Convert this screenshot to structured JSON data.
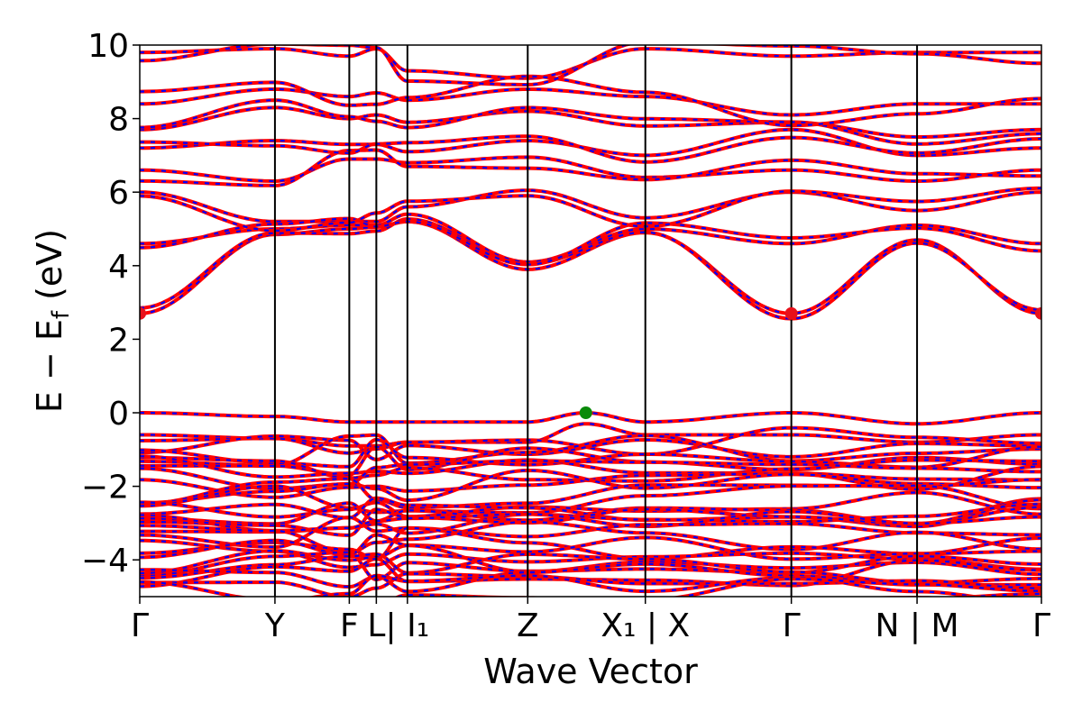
{
  "chart_data": {
    "type": "line",
    "title": "",
    "xlabel": "Wave Vector",
    "ylabel": "E − E",
    "ylabel_sub": "f",
    "ylabel_unit": " (eV)",
    "ylim": [
      -5,
      10
    ],
    "yticks": [
      -4,
      -2,
      0,
      2,
      4,
      6,
      8,
      10
    ],
    "ytick_labels": [
      "−4",
      "−2",
      "0",
      "2",
      "4",
      "6",
      "8",
      "10"
    ],
    "grid": false,
    "legend": "none",
    "xlim": [
      0,
      6.67
    ],
    "kpoints": [
      {
        "label": "Γ",
        "x": 0
      },
      {
        "label": "Y",
        "x": 1.0
      },
      {
        "label": "F",
        "x": 1.55
      },
      {
        "label": "L",
        "x": 1.75
      },
      {
        "label": "| I₁",
        "x": 1.98
      },
      {
        "label": "Z",
        "x": 2.87
      },
      {
        "label": "X₁ | X",
        "x": 3.74
      },
      {
        "label": "Γ",
        "x": 4.82
      },
      {
        "label": "N | M",
        "x": 5.75
      },
      {
        "label": "Γ",
        "x": 6.67
      }
    ],
    "series_colors": {
      "spin_up": "#ff0000",
      "spin_down": "#0000ff"
    },
    "markers": [
      {
        "name": "CBM",
        "color": "#e8101a",
        "points": [
          [
            0,
            2.7
          ],
          [
            4.82,
            2.7
          ],
          [
            6.67,
            2.7
          ]
        ]
      },
      {
        "name": "VBM",
        "color": "#0a8a0a",
        "points": [
          [
            3.3,
            0.0
          ]
        ]
      }
    ],
    "band_samples": {
      "conduction": [
        {
          "x": [
            0,
            1.0,
            1.55,
            1.75,
            1.98,
            2.87,
            3.74,
            4.82,
            5.75,
            6.67
          ],
          "y": [
            2.7,
            4.85,
            5.0,
            5.05,
            5.2,
            3.9,
            4.9,
            2.7,
            4.7,
            2.7
          ]
        },
        {
          "x": [
            0,
            1.0,
            1.55,
            1.75,
            1.98,
            2.87,
            3.74,
            4.82,
            5.75,
            6.67
          ],
          "y": [
            4.6,
            5.0,
            5.1,
            5.1,
            5.4,
            4.1,
            5.0,
            4.6,
            5.1,
            4.6
          ]
        },
        {
          "x": [
            0,
            1.0,
            1.55,
            1.75,
            1.98,
            2.87,
            3.74,
            4.82,
            5.75,
            6.67
          ],
          "y": [
            6.0,
            5.2,
            5.2,
            5.2,
            5.6,
            6.05,
            5.3,
            6.0,
            5.5,
            6.0
          ]
        },
        {
          "x": [
            0,
            1.0,
            1.55,
            1.75,
            1.98,
            2.87,
            3.74,
            4.82,
            5.75,
            6.67
          ],
          "y": [
            6.6,
            6.3,
            6.9,
            6.9,
            6.8,
            6.95,
            6.4,
            6.6,
            6.3,
            6.6
          ]
        },
        {
          "x": [
            0,
            1.0,
            1.55,
            1.75,
            1.98,
            2.87,
            3.74,
            4.82,
            5.75,
            6.67
          ],
          "y": [
            7.2,
            7.4,
            7.3,
            7.3,
            7.1,
            7.4,
            7.0,
            7.7,
            7.0,
            7.2
          ]
        },
        {
          "x": [
            0,
            1.0,
            1.55,
            1.75,
            1.98,
            2.87,
            3.74,
            4.82,
            5.75,
            6.67
          ],
          "y": [
            7.7,
            8.3,
            8.0,
            8.1,
            7.9,
            8.2,
            7.8,
            7.9,
            7.5,
            7.7
          ]
        },
        {
          "x": [
            0,
            1.0,
            1.55,
            1.75,
            1.98,
            2.87,
            3.74,
            4.82,
            5.75,
            6.67
          ],
          "y": [
            8.4,
            8.8,
            8.6,
            8.7,
            8.5,
            8.8,
            8.6,
            8.1,
            8.4,
            8.4
          ]
        },
        {
          "x": [
            0,
            1.0,
            1.55,
            1.75,
            1.98,
            2.87,
            3.74,
            4.82,
            5.75,
            6.67
          ],
          "y": [
            9.8,
            9.9,
            9.7,
            9.9,
            9.3,
            9.1,
            9.9,
            9.7,
            9.8,
            9.8
          ]
        }
      ],
      "valence_top": [
        {
          "x": [
            0,
            1.0,
            1.55,
            1.75,
            1.98,
            2.87,
            3.3,
            3.74,
            4.82,
            5.75,
            6.67
          ],
          "y": [
            0.0,
            -0.1,
            -0.25,
            -0.25,
            -0.25,
            -0.25,
            0.0,
            -0.25,
            0.0,
            -0.3,
            0.0
          ]
        },
        {
          "x": [
            0,
            1.0,
            1.55,
            1.75,
            1.98,
            2.87,
            3.3,
            3.74,
            4.82,
            5.75,
            6.67
          ],
          "y": [
            -0.6,
            -0.7,
            -0.9,
            -0.9,
            -0.8,
            -0.8,
            -0.3,
            -0.6,
            -0.6,
            -0.8,
            -0.6
          ]
        }
      ]
    }
  }
}
